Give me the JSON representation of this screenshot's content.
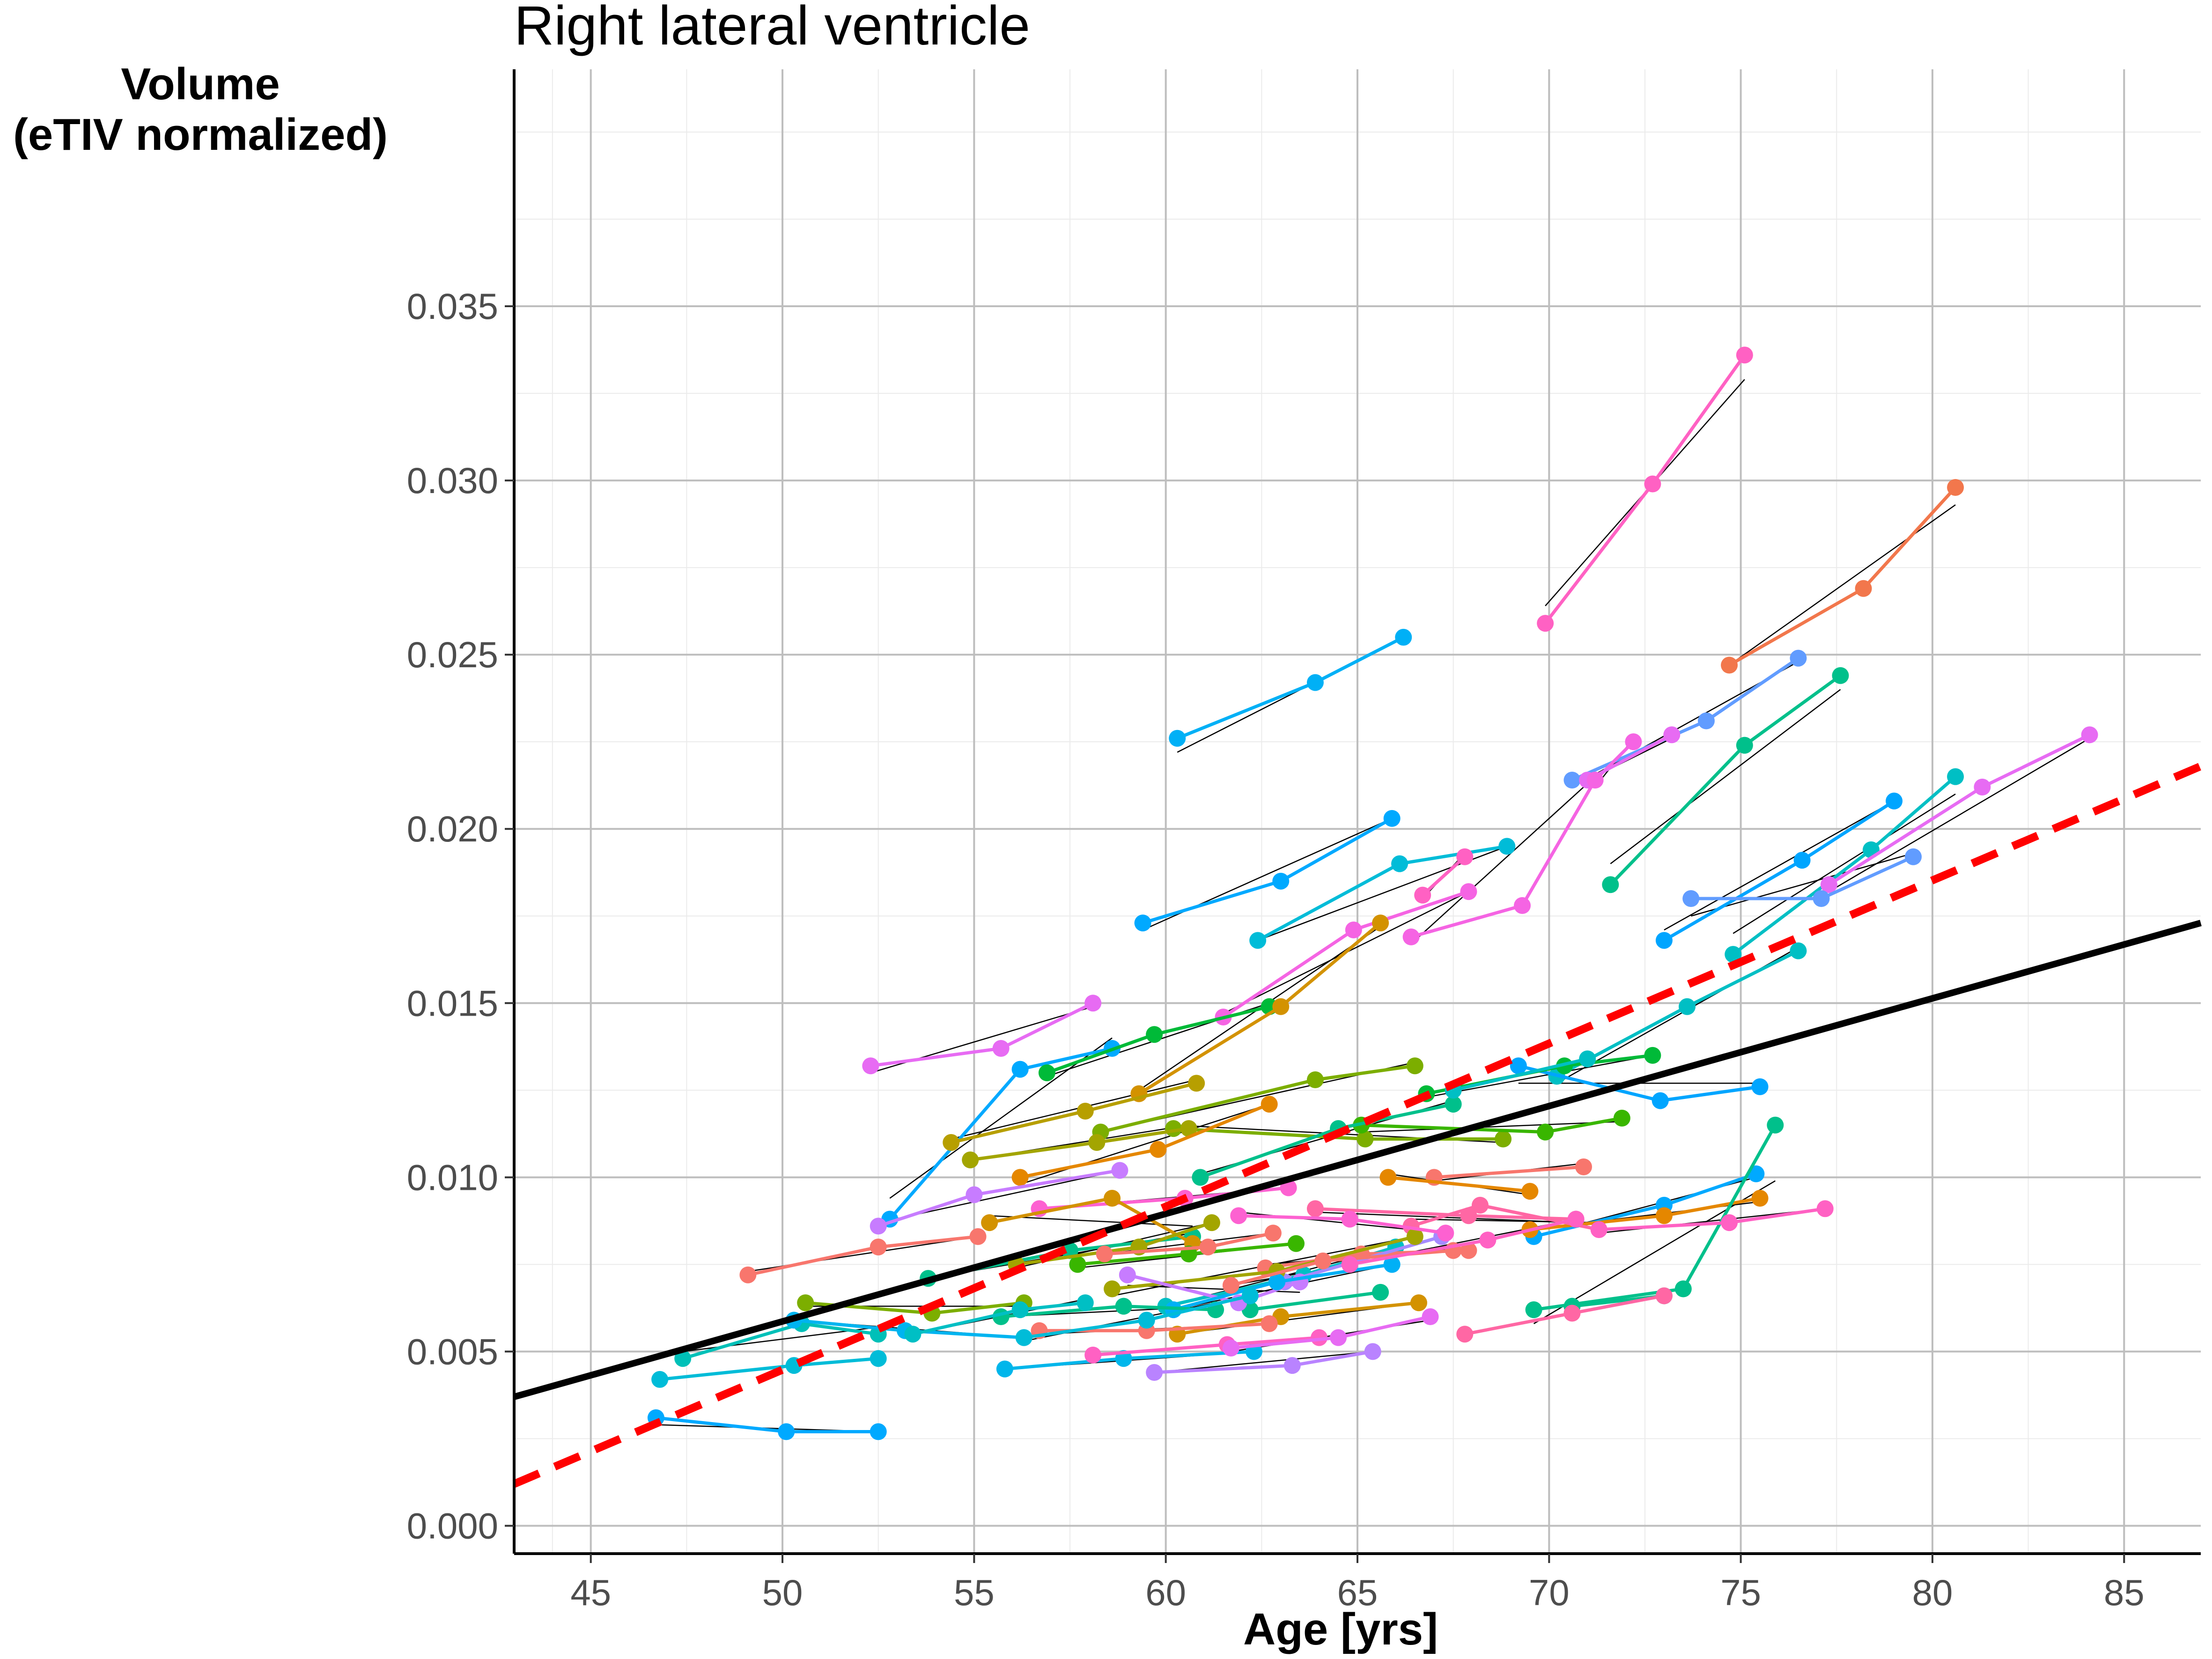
{
  "chart_data": {
    "type": "line",
    "title": "Right lateral ventricle",
    "xlabel": "Age [yrs]",
    "ylabel": [
      "Volume",
      "(eTIV normalized)"
    ],
    "xlim": [
      43,
      87
    ],
    "ylim": [
      -0.0008,
      0.0418
    ],
    "x_ticks": [
      45,
      50,
      55,
      60,
      65,
      70,
      75,
      80,
      85
    ],
    "x_tick_labels": [
      "45",
      "50",
      "55",
      "60",
      "65",
      "70",
      "75",
      "80",
      "85"
    ],
    "y_ticks": [
      0.0,
      0.005,
      0.01,
      0.015,
      0.02,
      0.025,
      0.03,
      0.035
    ],
    "y_tick_labels": [
      "0.000",
      "0.005",
      "0.010",
      "0.015",
      "0.020",
      "0.025",
      "0.030",
      "0.035"
    ],
    "grid": true,
    "legend": "none",
    "trend_lines": [
      {
        "style": "solid",
        "color": "#000000",
        "x": [
          43,
          87
        ],
        "y": [
          0.0037,
          0.0173
        ]
      },
      {
        "style": "dashed",
        "color": "#ff0000",
        "x": [
          43,
          87
        ],
        "y": [
          0.0012,
          0.0218
        ]
      }
    ],
    "subjects": [
      {
        "color": "#ff61c3",
        "x": [
          69.9,
          72.7,
          75.1
        ],
        "y": [
          0.0259,
          0.0299,
          0.0336
        ],
        "fit": [
          0.0264,
          0.0329
        ]
      },
      {
        "color": "#f2774c",
        "x": [
          74.7,
          78.2,
          80.6
        ],
        "y": [
          0.0247,
          0.0269,
          0.0298
        ],
        "fit": [
          0.0247,
          0.0293
        ]
      },
      {
        "color": "#00b0f6",
        "x": [
          60.3,
          63.9,
          66.2
        ],
        "y": [
          0.0226,
          0.0242,
          0.0255
        ],
        "fit": [
          0.0222,
          0.0255
        ]
      },
      {
        "color": "#619cff",
        "x": [
          70.6,
          74.1,
          76.5
        ],
        "y": [
          0.0214,
          0.0231,
          0.0249
        ],
        "fit": [
          0.0212,
          0.0248
        ]
      },
      {
        "color": "#00c08b",
        "x": [
          71.6,
          75.1,
          77.6
        ],
        "y": [
          0.0184,
          0.0224,
          0.0244
        ],
        "fit": [
          0.019,
          0.024
        ]
      },
      {
        "color": "#f564e3",
        "x": [
          71.2,
          72.2
        ],
        "y": [
          0.0214,
          0.0225
        ],
        "fit": [
          0.0212,
          0.0226
        ]
      },
      {
        "color": "#e76bf3",
        "x": [
          71.0,
          73.2
        ],
        "y": [
          0.0214,
          0.0227
        ],
        "fit": [
          0.0214,
          0.0226
        ]
      },
      {
        "color": "#f564e3",
        "x": [
          66.4,
          69.3,
          71.2
        ],
        "y": [
          0.0169,
          0.0178,
          0.0214
        ],
        "fit": [
          0.0167,
          0.0215
        ]
      },
      {
        "color": "#00a9ff",
        "x": [
          59.4,
          63.0,
          65.9
        ],
        "y": [
          0.0173,
          0.0185,
          0.0203
        ],
        "fit": [
          0.0171,
          0.0203
        ]
      },
      {
        "color": "#00bcd8",
        "x": [
          62.4,
          66.1,
          68.9
        ],
        "y": [
          0.0168,
          0.019,
          0.0195
        ],
        "fit": [
          0.0168,
          0.0195
        ]
      },
      {
        "color": "#f564e3",
        "x": [
          61.5,
          64.9,
          67.9
        ],
        "y": [
          0.0146,
          0.0171,
          0.0182
        ],
        "fit": [
          0.0147,
          0.0182
        ]
      },
      {
        "color": "#ff61c3",
        "x": [
          66.7,
          67.8
        ],
        "y": [
          0.0181,
          0.0192
        ],
        "fit": [
          0.018,
          0.0193
        ]
      },
      {
        "color": "#00a5ff",
        "x": [
          73.0,
          76.6,
          79.0
        ],
        "y": [
          0.0168,
          0.0191,
          0.0208
        ],
        "fit": [
          0.0171,
          0.0208
        ]
      },
      {
        "color": "#00bfc4",
        "x": [
          74.8,
          78.4,
          80.6
        ],
        "y": [
          0.0164,
          0.0194,
          0.0215
        ],
        "fit": [
          0.017,
          0.021
        ]
      },
      {
        "color": "#e76bf3",
        "x": [
          77.3,
          81.3,
          84.1
        ],
        "y": [
          0.0184,
          0.0212,
          0.0227
        ],
        "fit": [
          0.0182,
          0.0226
        ]
      },
      {
        "color": "#619cff",
        "x": [
          73.7,
          77.1,
          79.5
        ],
        "y": [
          0.018,
          0.018,
          0.0192
        ],
        "fit": [
          0.0175,
          0.0193
        ]
      },
      {
        "color": "#00bfc4",
        "x": [
          70.2,
          73.6,
          76.5
        ],
        "y": [
          0.0129,
          0.0149,
          0.0165
        ],
        "fit": [
          0.0127,
          0.0166
        ]
      },
      {
        "color": "#e76bf3",
        "x": [
          52.3,
          55.7,
          58.1
        ],
        "y": [
          0.0132,
          0.0137,
          0.015
        ],
        "fit": [
          0.013,
          0.0149
        ]
      },
      {
        "color": "#00a9ff",
        "x": [
          52.8,
          56.2,
          58.6
        ],
        "y": [
          0.0088,
          0.0131,
          0.0137
        ],
        "fit": [
          0.0094,
          0.014
        ]
      },
      {
        "color": "#00ba38",
        "x": [
          56.9,
          59.7,
          62.7
        ],
        "y": [
          0.013,
          0.0141,
          0.0149
        ],
        "fit": [
          0.0129,
          0.015
        ]
      },
      {
        "color": "#d39200",
        "x": [
          59.3,
          63.0,
          65.6
        ],
        "y": [
          0.0124,
          0.0149,
          0.0173
        ],
        "fit": [
          0.0125,
          0.0172
        ]
      },
      {
        "color": "#b79f00",
        "x": [
          54.4,
          57.9,
          60.8
        ],
        "y": [
          0.011,
          0.0119,
          0.0127
        ],
        "fit": [
          0.0111,
          0.0128
        ]
      },
      {
        "color": "#7cae00",
        "x": [
          58.3,
          63.9,
          66.5
        ],
        "y": [
          0.0113,
          0.0128,
          0.0132
        ],
        "fit": [
          0.0113,
          0.0133
        ]
      },
      {
        "color": "#00a5ff",
        "x": [
          69.2,
          72.9,
          75.5
        ],
        "y": [
          0.0132,
          0.0122,
          0.0126
        ],
        "fit": [
          0.0127,
          0.0127
        ]
      },
      {
        "color": "#7cae00",
        "x": [
          60.2,
          65.2,
          68.8
        ],
        "y": [
          0.0114,
          0.0111,
          0.0111
        ],
        "fit": [
          0.0115,
          0.011
        ]
      },
      {
        "color": "#39b600",
        "x": [
          65.1,
          69.9,
          71.9
        ],
        "y": [
          0.0115,
          0.0113,
          0.0117
        ],
        "fit": [
          0.0113,
          0.0116
        ]
      },
      {
        "color": "#00c08b",
        "x": [
          60.9,
          64.5,
          67.5
        ],
        "y": [
          0.01,
          0.0114,
          0.0121
        ],
        "fit": [
          0.0101,
          0.0122
        ]
      },
      {
        "color": "#00ba38",
        "x": [
          66.8,
          70.4,
          72.7
        ],
        "y": [
          0.0124,
          0.0132,
          0.0135
        ],
        "fit": [
          0.0123,
          0.0135
        ]
      },
      {
        "color": "#00bfc4",
        "x": [
          67.5,
          71.0
        ],
        "y": [
          0.0125,
          0.0134
        ],
        "fit": [
          0.0125,
          0.0134
        ]
      },
      {
        "color": "#a3a500",
        "x": [
          54.9,
          58.2,
          60.6
        ],
        "y": [
          0.0105,
          0.011,
          0.0114
        ],
        "fit": [
          0.0105,
          0.0115
        ]
      },
      {
        "color": "#f8766d",
        "x": [
          49.1,
          52.5,
          55.1
        ],
        "y": [
          0.0072,
          0.008,
          0.0083
        ],
        "fit": [
          0.0073,
          0.0083
        ]
      },
      {
        "color": "#e58700",
        "x": [
          56.2,
          59.8,
          62.7
        ],
        "y": [
          0.01,
          0.0108,
          0.0121
        ],
        "fit": [
          0.0098,
          0.0121
        ]
      },
      {
        "color": "#c77cff",
        "x": [
          52.5,
          55.0,
          58.8
        ],
        "y": [
          0.0086,
          0.0095,
          0.0102
        ],
        "fit": [
          0.0087,
          0.0102
        ]
      },
      {
        "color": "#00c08b",
        "x": [
          53.8,
          57.5,
          60.7
        ],
        "y": [
          0.0071,
          0.0079,
          0.0083
        ],
        "fit": [
          0.0071,
          0.0084
        ]
      },
      {
        "color": "#f8766d",
        "x": [
          67.0,
          70.9
        ],
        "y": [
          0.01,
          0.0103
        ],
        "fit": [
          0.0099,
          0.0104
        ]
      },
      {
        "color": "#e58700",
        "x": [
          65.8,
          69.5
        ],
        "y": [
          0.01,
          0.0096
        ],
        "fit": [
          0.0101,
          0.0095
        ]
      },
      {
        "color": "#ff67a4",
        "x": [
          63.9,
          67.9,
          70.7
        ],
        "y": [
          0.0091,
          0.0089,
          0.0088
        ],
        "fit": [
          0.009,
          0.0087
        ]
      },
      {
        "color": "#fd61d1",
        "x": [
          56.7,
          60.5,
          63.2
        ],
        "y": [
          0.0091,
          0.0094,
          0.0097
        ],
        "fit": [
          0.0091,
          0.0097
        ]
      },
      {
        "color": "#d39200",
        "x": [
          55.4,
          58.6,
          60.7
        ],
        "y": [
          0.0087,
          0.0094,
          0.0081
        ],
        "fit": [
          0.0089,
          0.0086
        ]
      },
      {
        "color": "#00a9ff",
        "x": [
          69.6,
          73.0,
          75.4
        ],
        "y": [
          0.0083,
          0.0092,
          0.0101
        ],
        "fit": [
          0.0083,
          0.01
        ]
      },
      {
        "color": "#e58700",
        "x": [
          69.5,
          73.0,
          75.5
        ],
        "y": [
          0.0085,
          0.0089,
          0.0094
        ],
        "fit": [
          0.0085,
          0.0093
        ]
      },
      {
        "color": "#00bfc4",
        "x": [
          60.0,
          63.6,
          66.0
        ],
        "y": [
          0.0063,
          0.0072,
          0.008
        ],
        "fit": [
          0.0063,
          0.008
        ]
      },
      {
        "color": "#00c08b",
        "x": [
          69.6,
          73.5,
          75.9
        ],
        "y": [
          0.0062,
          0.0068,
          0.0115
        ],
        "fit": [
          0.0058,
          0.0099
        ]
      },
      {
        "color": "#ff67a4",
        "x": [
          66.4,
          68.2,
          71.3
        ],
        "y": [
          0.0086,
          0.0092,
          0.0085
        ],
        "fit": [
          0.0088,
          0.0087
        ]
      },
      {
        "color": "#ff61c3",
        "x": [
          71.3,
          74.7,
          77.2
        ],
        "y": [
          0.0085,
          0.0087,
          0.0091
        ],
        "fit": [
          0.0084,
          0.0091
        ]
      },
      {
        "color": "#f8766d",
        "x": [
          62.6,
          65.1,
          67.9
        ],
        "y": [
          0.0074,
          0.0078,
          0.0079
        ],
        "fit": [
          0.0075,
          0.008
        ]
      },
      {
        "color": "#a58aff",
        "x": [
          63.1,
          67.2
        ],
        "y": [
          0.007,
          0.0083
        ],
        "fit": [
          0.007,
          0.0083
        ]
      },
      {
        "color": "#00c0b8",
        "x": [
          47.4,
          50.5,
          52.5
        ],
        "y": [
          0.0048,
          0.0058,
          0.0055
        ],
        "fit": [
          0.005,
          0.0057
        ]
      },
      {
        "color": "#00b4f0",
        "x": [
          50.3,
          53.2,
          56.3
        ],
        "y": [
          0.0059,
          0.0056,
          0.0054
        ],
        "fit": [
          0.0059,
          0.0054
        ]
      },
      {
        "color": "#7cae00",
        "x": [
          50.6,
          53.9,
          56.3
        ],
        "y": [
          0.0064,
          0.0061,
          0.0064
        ],
        "fit": [
          0.0063,
          0.0063
        ]
      },
      {
        "color": "#00b6eb",
        "x": [
          55.8,
          58.9,
          62.3
        ],
        "y": [
          0.0045,
          0.0048,
          0.005
        ],
        "fit": [
          0.0045,
          0.005
        ]
      },
      {
        "color": "#00bcd8",
        "x": [
          46.8,
          50.3,
          52.5
        ],
        "y": [
          0.0042,
          0.0046,
          0.0048
        ],
        "fit": [
          0.0042,
          0.0048
        ]
      },
      {
        "color": "#00a9ff",
        "x": [
          46.7,
          50.1,
          52.5
        ],
        "y": [
          0.0031,
          0.0027,
          0.0027
        ],
        "fit": [
          0.0029,
          0.0027
        ]
      },
      {
        "color": "#b983ff",
        "x": [
          59.7,
          63.3,
          65.4
        ],
        "y": [
          0.0044,
          0.0046,
          0.005
        ],
        "fit": [
          0.0044,
          0.005
        ]
      },
      {
        "color": "#ff61c3",
        "x": [
          58.1,
          61.6,
          64.0
        ],
        "y": [
          0.0049,
          0.0052,
          0.0054
        ],
        "fit": [
          0.0049,
          0.0054
        ]
      },
      {
        "color": "#e76bf3",
        "x": [
          61.7,
          64.5,
          66.9
        ],
        "y": [
          0.0051,
          0.0054,
          0.006
        ],
        "fit": [
          0.005,
          0.0059
        ]
      },
      {
        "color": "#00c08b",
        "x": [
          70.6,
          73.0
        ],
        "y": [
          0.0063,
          0.0066
        ],
        "fit": [
          0.0063,
          0.0066
        ]
      },
      {
        "color": "#ff67a4",
        "x": [
          67.8,
          70.6,
          73.0
        ],
        "y": [
          0.0055,
          0.0061,
          0.0066
        ],
        "fit": [
          0.0055,
          0.0066
        ]
      },
      {
        "color": "#a3a500",
        "x": [
          58.6,
          62.9,
          66.5
        ],
        "y": [
          0.0068,
          0.0073,
          0.0083
        ],
        "fit": [
          0.0066,
          0.0083
        ]
      },
      {
        "color": "#00c08b",
        "x": [
          62.2,
          65.6
        ],
        "y": [
          0.0062,
          0.0067
        ],
        "fit": [
          0.0062,
          0.0067
        ]
      },
      {
        "color": "#d39200",
        "x": [
          60.3,
          63.0,
          66.6
        ],
        "y": [
          0.0055,
          0.006,
          0.0064
        ],
        "fit": [
          0.0055,
          0.0064
        ]
      },
      {
        "color": "#f8766d",
        "x": [
          56.7,
          59.5,
          62.7
        ],
        "y": [
          0.0056,
          0.0056,
          0.0058
        ],
        "fit": [
          0.0055,
          0.0058
        ]
      },
      {
        "color": "#c77cff",
        "x": [
          59.0,
          61.9,
          63.5
        ],
        "y": [
          0.0072,
          0.0064,
          0.007
        ],
        "fit": [
          0.0069,
          0.0067
        ]
      },
      {
        "color": "#00b0f6",
        "x": [
          60.2,
          62.9,
          65.9
        ],
        "y": [
          0.0062,
          0.007,
          0.0075
        ],
        "fit": [
          0.0062,
          0.0075
        ]
      },
      {
        "color": "#f8766d",
        "x": [
          61.7,
          64.1,
          67.5
        ],
        "y": [
          0.0069,
          0.0076,
          0.0079
        ],
        "fit": [
          0.0069,
          0.008
        ]
      },
      {
        "color": "#00c08b",
        "x": [
          55.7,
          58.9,
          61.3
        ],
        "y": [
          0.006,
          0.0063,
          0.0062
        ],
        "fit": [
          0.006,
          0.0063
        ]
      },
      {
        "color": "#ff61c3",
        "x": [
          64.8,
          68.4,
          70.7
        ],
        "y": [
          0.0075,
          0.0082,
          0.0088
        ],
        "fit": [
          0.0075,
          0.0088
        ]
      },
      {
        "color": "#39b600",
        "x": [
          57.7,
          60.6,
          63.4
        ],
        "y": [
          0.0075,
          0.0078,
          0.0081
        ],
        "fit": [
          0.0074,
          0.0081
        ]
      },
      {
        "color": "#00bcd8",
        "x": [
          56.3,
          59.5,
          62.2
        ],
        "y": [
          0.0054,
          0.0059,
          0.0066
        ],
        "fit": [
          0.0053,
          0.0066
        ]
      },
      {
        "color": "#a3a500",
        "x": [
          56.1,
          59.3,
          61.2
        ],
        "y": [
          0.0075,
          0.008,
          0.0087
        ],
        "fit": [
          0.0074,
          0.0087
        ]
      },
      {
        "color": "#f8766d",
        "x": [
          58.4,
          61.1,
          62.8
        ],
        "y": [
          0.0078,
          0.008,
          0.0084
        ],
        "fit": [
          0.0078,
          0.0084
        ]
      },
      {
        "color": "#fd61d1",
        "x": [
          61.9,
          64.8,
          67.3
        ],
        "y": [
          0.0089,
          0.0088,
          0.0084
        ],
        "fit": [
          0.009,
          0.0084
        ]
      },
      {
        "color": "#00bfc4",
        "x": [
          53.4,
          56.2,
          57.9
        ],
        "y": [
          0.0055,
          0.0062,
          0.0064
        ],
        "fit": [
          0.0055,
          0.0065
        ]
      }
    ]
  }
}
